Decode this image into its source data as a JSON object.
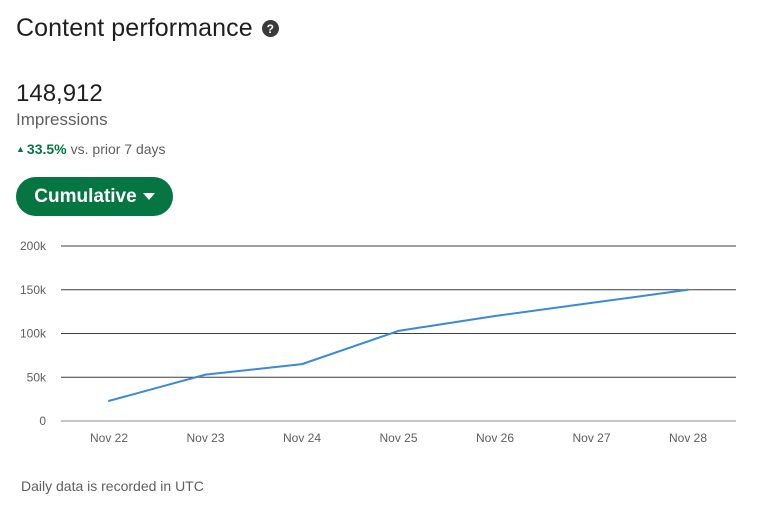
{
  "header": {
    "title": "Content performance",
    "help_icon": "help-icon",
    "help_glyph": "?"
  },
  "metric": {
    "value": "148,912",
    "label": "Impressions",
    "change": {
      "arrow": "▲",
      "value": "33.5%",
      "suffix": "vs. prior 7 days",
      "color": "#057642"
    }
  },
  "dropdown": {
    "label": "Cumulative",
    "color": "#057642"
  },
  "chart_data": {
    "type": "line",
    "categories": [
      "Nov 22",
      "Nov 23",
      "Nov 24",
      "Nov 25",
      "Nov 26",
      "Nov 27",
      "Nov 28"
    ],
    "series": [
      {
        "values": [
          23000,
          53000,
          65000,
          103000,
          120000,
          135000,
          150000
        ],
        "color": "#3b8ad9"
      }
    ],
    "y_ticks": [
      {
        "value": 0,
        "label": "0"
      },
      {
        "value": 50000,
        "label": "50k"
      },
      {
        "value": 100000,
        "label": "100k"
      },
      {
        "value": 150000,
        "label": "150k"
      },
      {
        "value": 200000,
        "label": "200k"
      }
    ],
    "ylim": [
      0,
      200000
    ],
    "grid": true
  },
  "footnote": "Daily data is recorded in UTC"
}
